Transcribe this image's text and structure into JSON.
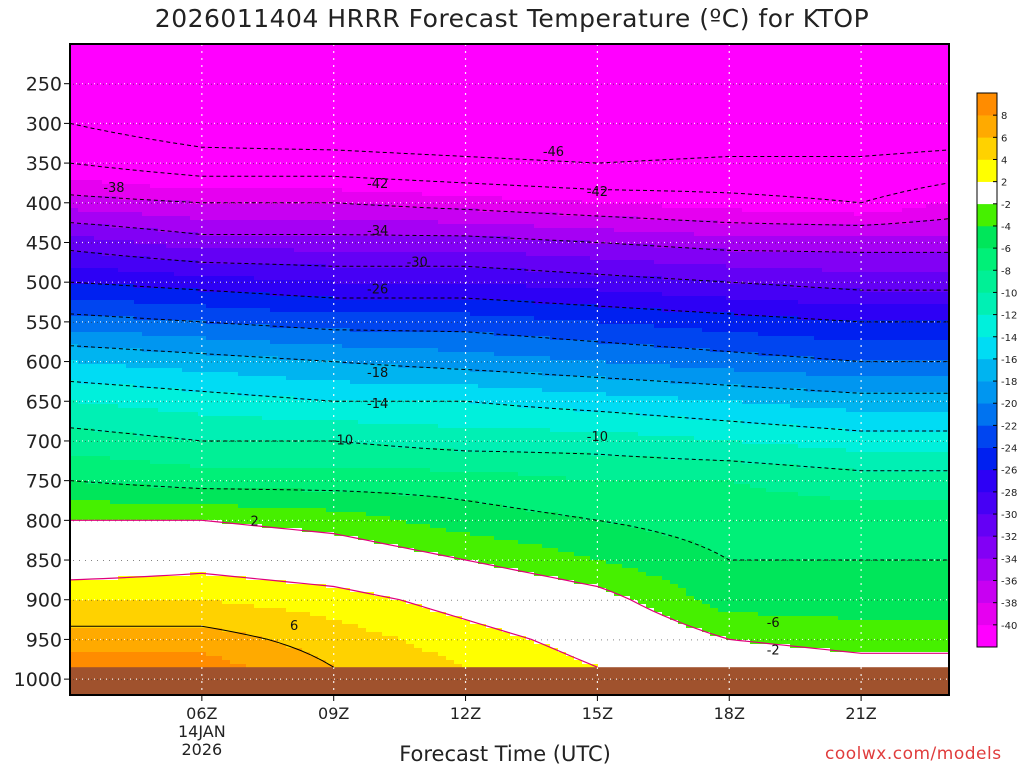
{
  "chart_data": {
    "type": "heatmap",
    "title": "2026011404 HRRR Forecast Temperature (ºC) for KTOP",
    "xlabel": "Forecast Time (UTC)",
    "ylabel": "",
    "watermark": "coolwx.com/models",
    "x_range_hours": [
      3.0,
      23.0
    ],
    "y_range_hPa": [
      200,
      1020
    ],
    "x_ticks": [
      {
        "hour": 6,
        "label": "06Z"
      },
      {
        "hour": 9,
        "label": "09Z"
      },
      {
        "hour": 12,
        "label": "12Z"
      },
      {
        "hour": 15,
        "label": "15Z"
      },
      {
        "hour": 18,
        "label": "18Z"
      },
      {
        "hour": 21,
        "label": "21Z"
      }
    ],
    "date_label_line1": "14JAN",
    "date_label_line2": "2026",
    "y_ticks": [
      250,
      300,
      350,
      400,
      450,
      500,
      550,
      600,
      650,
      700,
      750,
      800,
      850,
      900,
      950,
      1000
    ],
    "y_tick_labels": [
      "250",
      "300",
      "350",
      "400",
      "450",
      "500",
      "550",
      "600",
      "650",
      "700",
      "750",
      "800",
      "850",
      "900",
      "950",
      "1000"
    ],
    "surface_pressure_hPa": 985,
    "colorbar_levels": [
      -40,
      -38,
      -36,
      -34,
      -32,
      -30,
      -28,
      -26,
      -24,
      -22,
      -20,
      -18,
      -16,
      -14,
      -12,
      -10,
      -8,
      -6,
      -4,
      -2,
      2,
      4,
      6,
      8
    ],
    "colorbar_labels": [
      "-40",
      "-38",
      "-36",
      "-34",
      "-32",
      "-30",
      "-28",
      "-26",
      "-24",
      "-22",
      "-20",
      "-18",
      "-16",
      "-14",
      "-12",
      "-10",
      "-8",
      "-6",
      "-4",
      "-2",
      "2",
      "4",
      "6",
      "8"
    ],
    "colorbar_colors": [
      "#ff00ff",
      "#e600f0",
      "#c800f2",
      "#a600f4",
      "#8200f5",
      "#6400f5",
      "#4600f5",
      "#2d00f5",
      "#0020f0",
      "#0045f0",
      "#0073f0",
      "#0096f0",
      "#00b4f0",
      "#00dcf4",
      "#00f0dc",
      "#00f0b4",
      "#00f096",
      "#00f078",
      "#00e65a",
      "#46f000",
      "#ffffff",
      "#ffff00",
      "#ffd200",
      "#ffaa00",
      "#ff8c00"
    ],
    "temperature_profile_levels_hPa": [
      200,
      250,
      300,
      350,
      400,
      450,
      500,
      550,
      600,
      650,
      700,
      750,
      800,
      850,
      900,
      950,
      985
    ],
    "temperature_profiles": [
      {
        "hour": 3,
        "temps": [
          -47,
          -47,
          -46,
          -42,
          -37,
          -31,
          -26,
          -21,
          -16,
          -12,
          -9,
          -6,
          -2,
          0,
          4,
          7,
          9
        ]
      },
      {
        "hour": 6,
        "temps": [
          -49,
          -50,
          -49,
          -44,
          -38,
          -33,
          -27,
          -22,
          -17,
          -13,
          -10,
          -7,
          -2,
          1,
          4,
          7,
          9
        ]
      },
      {
        "hour": 9,
        "temps": [
          -52,
          -52,
          -50,
          -44,
          -38,
          -33,
          -28,
          -23,
          -18,
          -14,
          -10,
          -7,
          -3,
          0,
          3,
          5,
          6
        ]
      },
      {
        "hour": 12,
        "temps": [
          -54,
          -54,
          -51,
          -45,
          -39,
          -33,
          -28,
          -23,
          -19,
          -14,
          -11,
          -7,
          -5,
          -2,
          1,
          3,
          4
        ]
      },
      {
        "hour": 15,
        "temps": [
          -55,
          -55,
          -52,
          -46,
          -40,
          -34,
          -29,
          -24,
          -20,
          -15,
          -11,
          -8,
          -6,
          -4,
          -1,
          1,
          2
        ]
      },
      {
        "hour": 18,
        "temps": [
          -55,
          -55,
          -51,
          -45,
          -41,
          -35,
          -30,
          -25,
          -21,
          -16,
          -12,
          -8,
          -7,
          -6,
          -5,
          -2,
          0
        ]
      },
      {
        "hour": 21,
        "temps": [
          -55,
          -55,
          -51,
          -45,
          -42,
          -35,
          -31,
          -26,
          -22,
          -17,
          -13,
          -9,
          -7,
          -6,
          -5,
          -3,
          -1
        ]
      },
      {
        "hour": 23,
        "temps": [
          -55,
          -55,
          -50,
          -44,
          -40,
          -35,
          -31,
          -26,
          -22,
          -17,
          -13,
          -9,
          -7,
          -6,
          -5,
          -3,
          -1
        ]
      }
    ],
    "contour_levels": [
      -46,
      -42,
      -38,
      -34,
      -30,
      -26,
      -22,
      -18,
      -14,
      -10,
      -6,
      -2,
      2,
      6
    ],
    "contour_labels": [
      {
        "text": "-46",
        "hour": 14.0,
        "p": 335
      },
      {
        "text": "-42",
        "hour": 10.0,
        "p": 375
      },
      {
        "text": "-42",
        "hour": 15.0,
        "p": 385
      },
      {
        "text": "-38",
        "hour": 4.0,
        "p": 380
      },
      {
        "text": "-34",
        "hour": 10.0,
        "p": 434
      },
      {
        "text": "-30",
        "hour": 10.9,
        "p": 474
      },
      {
        "text": "-26",
        "hour": 10.0,
        "p": 508
      },
      {
        "text": "-18",
        "hour": 10.0,
        "p": 613
      },
      {
        "text": "-14",
        "hour": 10.0,
        "p": 652
      },
      {
        "text": "-10",
        "hour": 9.2,
        "p": 698
      },
      {
        "text": "-10",
        "hour": 15.0,
        "p": 694
      },
      {
        "text": "2",
        "hour": 7.2,
        "p": 800
      },
      {
        "text": "6",
        "hour": 8.1,
        "p": 932
      },
      {
        "text": "-6",
        "hour": 19.0,
        "p": 928
      },
      {
        "text": "-2",
        "hour": 19.0,
        "p": 963
      }
    ]
  }
}
